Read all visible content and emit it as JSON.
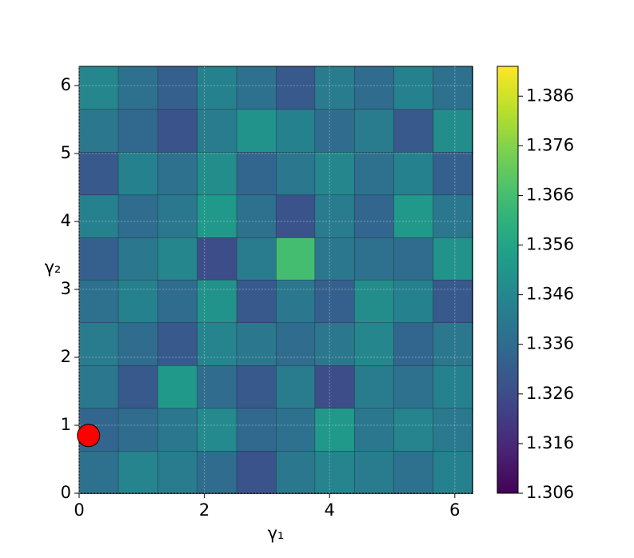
{
  "chart_data": {
    "type": "contour",
    "xlabel": "γ₁",
    "ylabel": "γ₂",
    "xlim": [
      0,
      6.283
    ],
    "ylim": [
      0,
      6.283
    ],
    "xticks": [
      0,
      2,
      4,
      6
    ],
    "yticks": [
      0,
      1,
      2,
      3,
      4,
      5,
      6
    ],
    "grid": true,
    "colormap": "viridis",
    "x": [
      0.31,
      0.94,
      1.57,
      2.2,
      2.83,
      3.46,
      4.08,
      4.71,
      5.34,
      5.97
    ],
    "y": [
      0.31,
      0.94,
      1.57,
      2.2,
      2.83,
      3.46,
      4.08,
      4.71,
      5.34,
      5.97
    ],
    "z": [
      [
        1.338,
        1.345,
        1.342,
        1.336,
        1.328,
        1.34,
        1.345,
        1.342,
        1.338,
        1.344
      ],
      [
        1.334,
        1.336,
        1.34,
        1.347,
        1.335,
        1.338,
        1.352,
        1.34,
        1.345,
        1.341
      ],
      [
        1.34,
        1.33,
        1.352,
        1.336,
        1.33,
        1.342,
        1.326,
        1.342,
        1.338,
        1.344
      ],
      [
        1.342,
        1.336,
        1.33,
        1.345,
        1.34,
        1.336,
        1.34,
        1.346,
        1.334,
        1.34
      ],
      [
        1.338,
        1.344,
        1.336,
        1.35,
        1.33,
        1.34,
        1.332,
        1.348,
        1.344,
        1.33
      ],
      [
        1.332,
        1.34,
        1.346,
        1.326,
        1.342,
        1.366,
        1.34,
        1.338,
        1.336,
        1.35
      ],
      [
        1.344,
        1.336,
        1.34,
        1.352,
        1.338,
        1.328,
        1.342,
        1.334,
        1.352,
        1.34
      ],
      [
        1.33,
        1.344,
        1.338,
        1.348,
        1.334,
        1.34,
        1.346,
        1.338,
        1.344,
        1.332
      ],
      [
        1.34,
        1.335,
        1.328,
        1.342,
        1.35,
        1.344,
        1.336,
        1.342,
        1.33,
        1.348
      ],
      [
        1.346,
        1.338,
        1.332,
        1.344,
        1.338,
        1.33,
        1.342,
        1.336,
        1.344,
        1.338
      ]
    ],
    "clim": [
      1.306,
      1.392
    ],
    "cticks": [
      1.306,
      1.316,
      1.326,
      1.336,
      1.346,
      1.356,
      1.366,
      1.376,
      1.386
    ],
    "marker": {
      "x": 0.15,
      "y": 0.85,
      "color": "#ff0000"
    }
  }
}
